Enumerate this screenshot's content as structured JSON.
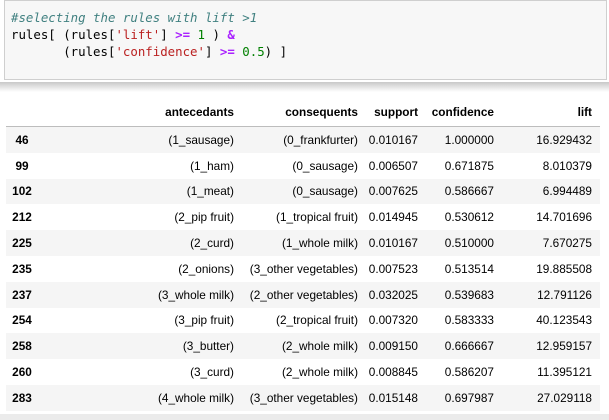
{
  "code_cell": {
    "comment": "#selecting the rules with lift >1",
    "line2": {
      "a": "rules[ (rules[",
      "b": "'lift'",
      "c": "] ",
      "d": ">=",
      "e": " ",
      "f": "1",
      "g": " ) ",
      "h": "&"
    },
    "line3": {
      "a": "       (rules[",
      "b": "'confidence'",
      "c": "] ",
      "d": ">=",
      "e": " ",
      "f": "0.5",
      "g": ") ]"
    }
  },
  "table": {
    "columns": [
      "",
      "antecedants",
      "consequents",
      "support",
      "confidence",
      "lift"
    ],
    "rows": [
      [
        "46",
        "(1_sausage)",
        "(0_frankfurter)",
        "0.010167",
        "1.000000",
        "16.929432"
      ],
      [
        "99",
        "(1_ham)",
        "(0_sausage)",
        "0.006507",
        "0.671875",
        "8.010379"
      ],
      [
        "102",
        "(1_meat)",
        "(0_sausage)",
        "0.007625",
        "0.586667",
        "6.994489"
      ],
      [
        "212",
        "(2_pip fruit)",
        "(1_tropical fruit)",
        "0.014945",
        "0.530612",
        "14.701696"
      ],
      [
        "225",
        "(2_curd)",
        "(1_whole milk)",
        "0.010167",
        "0.510000",
        "7.670275"
      ],
      [
        "235",
        "(2_onions)",
        "(3_other vegetables)",
        "0.007523",
        "0.513514",
        "19.885508"
      ],
      [
        "237",
        "(3_whole milk)",
        "(2_other vegetables)",
        "0.032025",
        "0.539683",
        "12.791126"
      ],
      [
        "254",
        "(3_pip fruit)",
        "(2_tropical fruit)",
        "0.007320",
        "0.583333",
        "40.123543"
      ],
      [
        "258",
        "(3_butter)",
        "(2_whole milk)",
        "0.009150",
        "0.666667",
        "12.959157"
      ],
      [
        "260",
        "(3_curd)",
        "(2_whole milk)",
        "0.008845",
        "0.586207",
        "11.395121"
      ],
      [
        "283",
        "(4_whole milk)",
        "(3_other vegetables)",
        "0.015148",
        "0.697987",
        "27.029118"
      ]
    ]
  }
}
